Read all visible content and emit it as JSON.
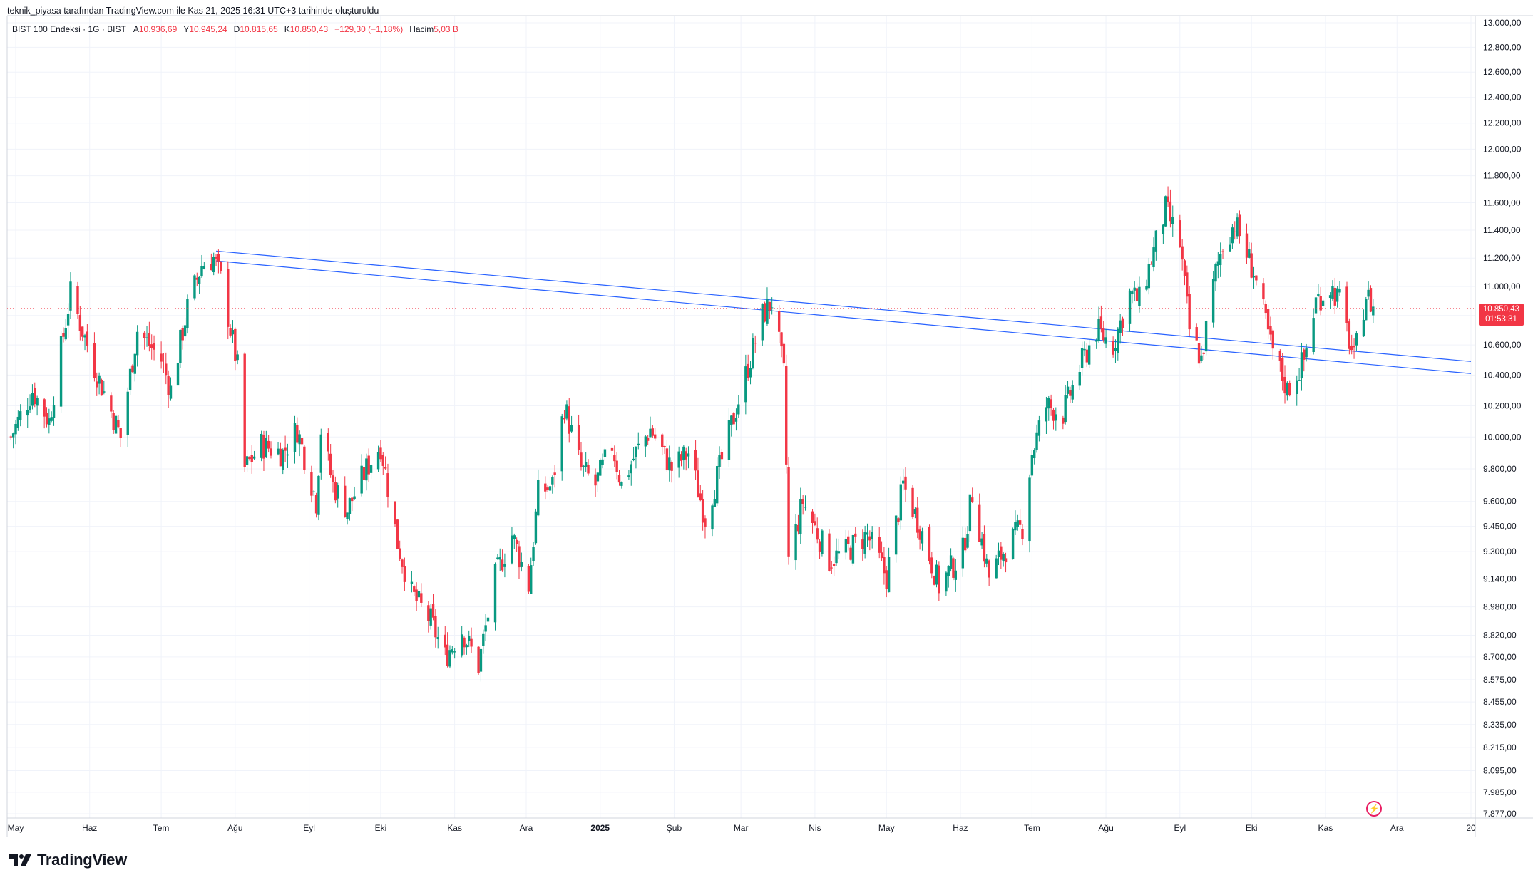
{
  "header": {
    "attribution": "teknik_piyasa tarafından TradingView.com ile Kas 21, 2025 16:31 UTC+3 tarihinde oluşturuldu"
  },
  "legend": {
    "symbol": "BIST 100 Endeksi · 1G · BIST",
    "open_label": "A",
    "open": "10.936,69",
    "high_label": "Y",
    "high": "10.945,24",
    "low_label": "D",
    "low": "10.815,65",
    "close_label": "K",
    "close": "10.850,43",
    "change": "−129,30 (−1,18%)",
    "volume_label": "Hacim",
    "volume": "5,03 B"
  },
  "price_tag": {
    "price": "10.850,43",
    "countdown": "01:53:31"
  },
  "brand": {
    "name": "TradingView"
  },
  "colors": {
    "up": "#089981",
    "down": "#f23645",
    "trendline": "#2962ff",
    "grid": "#f0f3fa"
  },
  "chart_data": {
    "type": "candlestick",
    "title": "BIST 100 Endeksi · 1G · BIST",
    "y_scale": "log",
    "ylim": [
      7877,
      13000
    ],
    "y_ticks": [
      13000,
      12800,
      12600,
      12400,
      12200,
      12000,
      11800,
      11600,
      11400,
      11200,
      11000,
      10800,
      10600,
      10400,
      10200,
      10000,
      9800,
      9600,
      9450,
      9300,
      9140,
      8980,
      8820,
      8700,
      8575,
      8455,
      8335,
      8215,
      8095,
      7985,
      7877
    ],
    "y_tick_labels": [
      "13.000,00",
      "12.800,00",
      "12.600,00",
      "12.400,00",
      "12.200,00",
      "12.000,00",
      "11.800,00",
      "11.600,00",
      "11.400,00",
      "11.200,00",
      "11.000,00",
      "10.800,00",
      "10.600,00",
      "10.400,00",
      "10.200,00",
      "10.000,00",
      "9.800,00",
      "9.600,00",
      "9.450,00",
      "9.300,00",
      "9.140,00",
      "8.980,00",
      "8.820,00",
      "8.700,00",
      "8.575,00",
      "8.455,00",
      "8.335,00",
      "8.215,00",
      "8.095,00",
      "7.985,00",
      "7.877,00"
    ],
    "x_tick_labels": [
      "May",
      "Haz",
      "Tem",
      "Ağu",
      "Eyl",
      "Eki",
      "Kas",
      "Ara",
      "2025",
      "Şub",
      "Mar",
      "Nis",
      "May",
      "Haz",
      "Tem",
      "Ağu",
      "Eyl",
      "Eki",
      "Kas",
      "Ara",
      "20"
    ],
    "x_tick_dates": [
      "2024-05-01",
      "2024-06-01",
      "2024-07-01",
      "2024-08-01",
      "2024-09-01",
      "2024-10-01",
      "2024-11-01",
      "2024-12-01",
      "2025-01-01",
      "2025-02-01",
      "2025-03-01",
      "2025-04-01",
      "2025-05-01",
      "2025-06-01",
      "2025-07-01",
      "2025-08-01",
      "2025-09-01",
      "2025-10-01",
      "2025-11-01",
      "2025-12-01",
      "2026-01-01"
    ],
    "close_path": [
      [
        "2024-04-29",
        10000
      ],
      [
        "2024-05-08",
        10300
      ],
      [
        "2024-05-15",
        10100
      ],
      [
        "2024-05-24",
        10950
      ],
      [
        "2024-06-03",
        10450
      ],
      [
        "2024-06-14",
        10000
      ],
      [
        "2024-06-21",
        10700
      ],
      [
        "2024-07-01",
        10500
      ],
      [
        "2024-07-05",
        10300
      ],
      [
        "2024-07-12",
        10850
      ],
      [
        "2024-07-18",
        11150
      ],
      [
        "2024-07-23",
        11200
      ],
      [
        "2024-07-26",
        11050
      ],
      [
        "2024-08-02",
        10450
      ],
      [
        "2024-08-05",
        9800
      ],
      [
        "2024-08-12",
        9950
      ],
      [
        "2024-08-21",
        9900
      ],
      [
        "2024-08-27",
        10050
      ],
      [
        "2024-09-04",
        9600
      ],
      [
        "2024-09-06",
        10050
      ],
      [
        "2024-09-11",
        9700
      ],
      [
        "2024-09-17",
        9550
      ],
      [
        "2024-09-25",
        9800
      ],
      [
        "2024-10-01",
        9950
      ],
      [
        "2024-10-08",
        9350
      ],
      [
        "2024-10-14",
        9050
      ],
      [
        "2024-10-22",
        8900
      ],
      [
        "2024-10-28",
        8700
      ],
      [
        "2024-11-04",
        8850
      ],
      [
        "2024-11-11",
        8650
      ],
      [
        "2024-11-18",
        9150
      ],
      [
        "2024-11-25",
        9400
      ],
      [
        "2024-12-02",
        9100
      ],
      [
        "2024-12-06",
        9650
      ],
      [
        "2024-12-12",
        9700
      ],
      [
        "2024-12-17",
        10200
      ],
      [
        "2024-12-24",
        9800
      ],
      [
        "2024-12-30",
        9700
      ],
      [
        "2025-01-06",
        9950
      ],
      [
        "2025-01-10",
        9700
      ],
      [
        "2025-01-16",
        9900
      ],
      [
        "2025-01-22",
        10050
      ],
      [
        "2025-01-31",
        9800
      ],
      [
        "2025-02-07",
        9900
      ],
      [
        "2025-02-14",
        9500
      ],
      [
        "2025-02-20",
        9800
      ],
      [
        "2025-03-03",
        10400
      ],
      [
        "2025-03-10",
        10800
      ],
      [
        "2025-03-14",
        10900
      ],
      [
        "2025-03-19",
        10400
      ],
      [
        "2025-03-21",
        9250
      ],
      [
        "2025-03-27",
        9600
      ],
      [
        "2025-04-07",
        9250
      ],
      [
        "2025-04-14",
        9300
      ],
      [
        "2025-04-23",
        9400
      ],
      [
        "2025-05-01",
        9150
      ],
      [
        "2025-05-08",
        9700
      ],
      [
        "2025-05-15",
        9450
      ],
      [
        "2025-05-23",
        9100
      ],
      [
        "2025-06-02",
        9300
      ],
      [
        "2025-06-06",
        9650
      ],
      [
        "2025-06-13",
        9150
      ],
      [
        "2025-06-19",
        9300
      ],
      [
        "2025-06-27",
        9450
      ],
      [
        "2025-07-01",
        9900
      ],
      [
        "2025-07-07",
        10200
      ],
      [
        "2025-07-14",
        10150
      ],
      [
        "2025-07-21",
        10450
      ],
      [
        "2025-07-28",
        10700
      ],
      [
        "2025-08-04",
        10600
      ],
      [
        "2025-08-11",
        10950
      ],
      [
        "2025-08-15",
        10900
      ],
      [
        "2025-08-21",
        11250
      ],
      [
        "2025-08-26",
        11550
      ],
      [
        "2025-09-01",
        11300
      ],
      [
        "2025-09-05",
        10700
      ],
      [
        "2025-09-10",
        10500
      ],
      [
        "2025-09-16",
        11100
      ],
      [
        "2025-09-19",
        11300
      ],
      [
        "2025-09-24",
        11450
      ],
      [
        "2025-10-02",
        11100
      ],
      [
        "2025-10-09",
        10600
      ],
      [
        "2025-10-16",
        10300
      ],
      [
        "2025-10-23",
        10500
      ],
      [
        "2025-10-28",
        10900
      ],
      [
        "2025-11-03",
        11000
      ],
      [
        "2025-11-07",
        10900
      ],
      [
        "2025-11-13",
        10500
      ],
      [
        "2025-11-18",
        10950
      ],
      [
        "2025-11-21",
        10850
      ]
    ],
    "trendlines": [
      {
        "points": [
          [
            "2024-07-24",
            11250
          ],
          [
            "2026-01-01",
            10490
          ]
        ]
      },
      {
        "points": [
          [
            "2024-07-24",
            11180
          ],
          [
            "2026-01-01",
            10410
          ]
        ]
      }
    ]
  }
}
